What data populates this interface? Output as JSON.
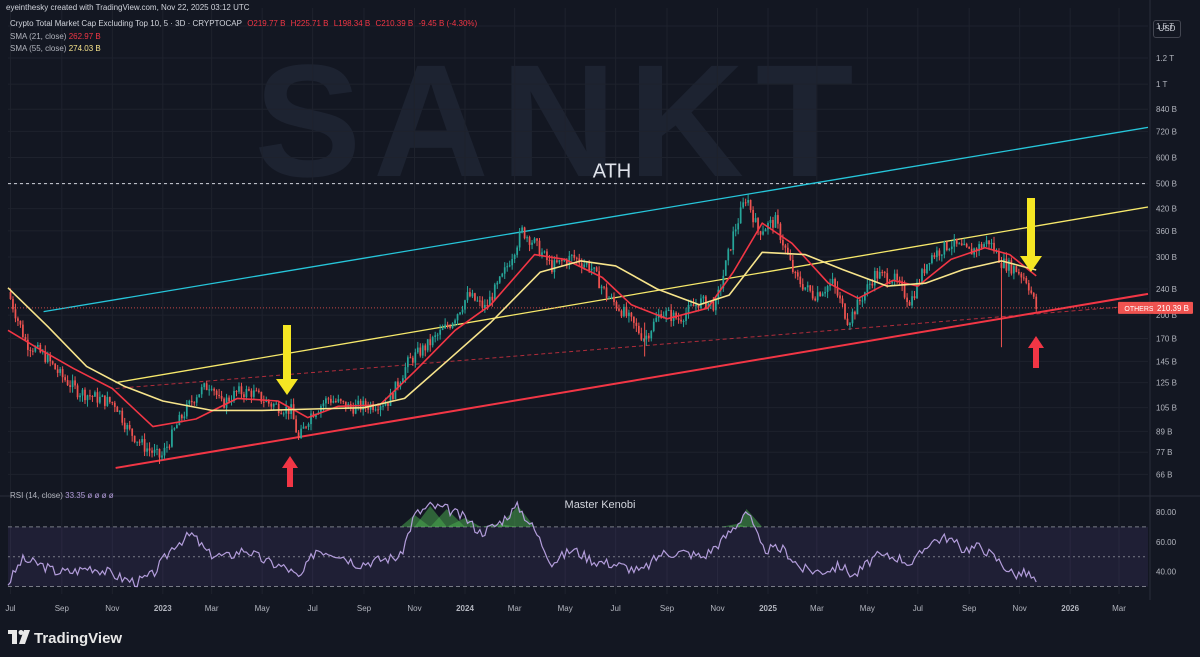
{
  "header": {
    "credit": "eyeinthesky created with TradingView.com, Nov 22, 2025 03:12 UTC"
  },
  "legend": {
    "symbol": "Crypto Total Market Cap Excluding Top 10, 5 · 3D · CRYPTOCAP",
    "open": "O219.77 B",
    "high": "H225.71 B",
    "low": "L198.34 B",
    "close": "C210.39 B",
    "change": "-9.45 B (-4.30%)",
    "sma21_label": "SMA (21, close)",
    "sma21_value": "262.97 B",
    "sma55_label": "SMA (55, close)",
    "sma55_value": "274.03 B",
    "rsi_label": "RSI (14, close)",
    "rsi_value": "33.35",
    "rsi_extra": "ø ø ø ø"
  },
  "currency_button": "USD",
  "watermark": "SANKT",
  "annotations": {
    "ath": "ATH",
    "rsi_title": "Master Kenobi"
  },
  "footer": {
    "brand": "TradingView"
  },
  "colors": {
    "background": "#131722",
    "candle_up": "#26a69a",
    "candle_down": "#ef5350",
    "sma21": "#f23645",
    "sma55": "#f7e48b",
    "channel_top": "#26c6da",
    "channel_mid": "#f7e96b",
    "channel_bottom": "#f23645",
    "rsi": "#b39ddb",
    "arrow_yellow": "#f5e623",
    "arrow_red": "#f23645"
  },
  "chart_data": {
    "type": "candlestick",
    "title": "Crypto Total Market Cap Excluding Top 10",
    "y_scale": "log",
    "y_unit": "USD",
    "price_ticks": [
      "1.5 T",
      "1.2 T",
      "1 T",
      "840 B",
      "720 B",
      "600 B",
      "500 B",
      "420 B",
      "360 B",
      "300 B",
      "240 B",
      "200 B",
      "170 B",
      "145 B",
      "125 B",
      "105 B",
      "89 B",
      "77 B",
      "66 B"
    ],
    "price_tick_values": [
      1500,
      1200,
      1000,
      840,
      720,
      600,
      500,
      420,
      360,
      300,
      240,
      200,
      170,
      145,
      125,
      105,
      89,
      77,
      66
    ],
    "x_ticks": [
      "Jul",
      "Sep",
      "Nov",
      "2023",
      "Mar",
      "May",
      "Jul",
      "Sep",
      "Nov",
      "2024",
      "Mar",
      "May",
      "Jul",
      "Sep",
      "Nov",
      "2025",
      "Mar",
      "May",
      "Jul",
      "Sep",
      "Nov",
      "2026",
      "Mar"
    ],
    "x_tick_dates": [
      "2022-07-01",
      "2022-09-01",
      "2022-11-01",
      "2023-01-01",
      "2023-03-01",
      "2023-05-01",
      "2023-07-01",
      "2023-09-01",
      "2023-11-01",
      "2024-01-01",
      "2024-03-01",
      "2024-05-01",
      "2024-07-01",
      "2024-09-01",
      "2024-11-01",
      "2025-01-01",
      "2025-03-01",
      "2025-05-01",
      "2025-07-01",
      "2025-09-01",
      "2025-11-01",
      "2026-01-01",
      "2026-03-01"
    ],
    "x_range": [
      "2022-06-28",
      "2026-04-05"
    ],
    "y_range": [
      60,
      1700
    ],
    "current_price_label": "OTHERS",
    "current_price_value": "210.39 B",
    "current_price": 210.39,
    "ath_level": 500,
    "price_path": [
      [
        "2022-06-28",
        235
      ],
      [
        "2022-07-20",
        165
      ],
      [
        "2022-08-12",
        150
      ],
      [
        "2022-08-30",
        132
      ],
      [
        "2022-09-20",
        118
      ],
      [
        "2022-10-15",
        112
      ],
      [
        "2022-11-05",
        108
      ],
      [
        "2022-11-20",
        90
      ],
      [
        "2022-12-10",
        80
      ],
      [
        "2022-12-30",
        74
      ],
      [
        "2023-01-20",
        95
      ],
      [
        "2023-02-10",
        115
      ],
      [
        "2023-03-01",
        125
      ],
      [
        "2023-03-12",
        107
      ],
      [
        "2023-04-01",
        117
      ],
      [
        "2023-04-18",
        117
      ],
      [
        "2023-05-10",
        108
      ],
      [
        "2023-06-05",
        103
      ],
      [
        "2023-06-14",
        84
      ],
      [
        "2023-06-28",
        100
      ],
      [
        "2023-07-20",
        112
      ],
      [
        "2023-08-15",
        105
      ],
      [
        "2023-09-10",
        107
      ],
      [
        "2023-10-01",
        110
      ],
      [
        "2023-10-25",
        145
      ],
      [
        "2023-11-20",
        165
      ],
      [
        "2023-12-15",
        190
      ],
      [
        "2024-01-05",
        230
      ],
      [
        "2024-01-25",
        210
      ],
      [
        "2024-02-15",
        260
      ],
      [
        "2024-03-10",
        360
      ],
      [
        "2024-03-25",
        330
      ],
      [
        "2024-04-15",
        280
      ],
      [
        "2024-05-10",
        300
      ],
      [
        "2024-06-01",
        280
      ],
      [
        "2024-06-20",
        230
      ],
      [
        "2024-07-10",
        205
      ],
      [
        "2024-08-05",
        170
      ],
      [
        "2024-08-25",
        205
      ],
      [
        "2024-09-15",
        195
      ],
      [
        "2024-10-10",
        220
      ],
      [
        "2024-10-30",
        215
      ],
      [
        "2024-11-20",
        350
      ],
      [
        "2024-12-06",
        460
      ],
      [
        "2024-12-20",
        360
      ],
      [
        "2025-01-10",
        385
      ],
      [
        "2025-02-03",
        260
      ],
      [
        "2025-02-25",
        230
      ],
      [
        "2025-03-20",
        250
      ],
      [
        "2025-04-08",
        192
      ],
      [
        "2025-05-10",
        265
      ],
      [
        "2025-06-01",
        260
      ],
      [
        "2025-06-22",
        220
      ],
      [
        "2025-07-15",
        300
      ],
      [
        "2025-08-10",
        330
      ],
      [
        "2025-09-01",
        310
      ],
      [
        "2025-09-25",
        335
      ],
      [
        "2025-10-10",
        290
      ],
      [
        "2025-10-28",
        275
      ],
      [
        "2025-11-10",
        255
      ],
      [
        "2025-11-21",
        210
      ]
    ],
    "series": [
      {
        "name": "SMA (21, close)",
        "path": [
          [
            "2022-06-28",
            180
          ],
          [
            "2022-08-01",
            160
          ],
          [
            "2022-09-15",
            138
          ],
          [
            "2022-11-01",
            120
          ],
          [
            "2022-12-20",
            92
          ],
          [
            "2023-02-10",
            97
          ],
          [
            "2023-04-01",
            112
          ],
          [
            "2023-05-20",
            110
          ],
          [
            "2023-06-25",
            98
          ],
          [
            "2023-08-01",
            106
          ],
          [
            "2023-09-20",
            107
          ],
          [
            "2023-11-01",
            135
          ],
          [
            "2023-12-20",
            180
          ],
          [
            "2024-02-01",
            215
          ],
          [
            "2024-03-25",
            305
          ],
          [
            "2024-05-01",
            295
          ],
          [
            "2024-06-15",
            260
          ],
          [
            "2024-07-20",
            215
          ],
          [
            "2024-09-01",
            195
          ],
          [
            "2024-10-20",
            210
          ],
          [
            "2024-11-20",
            270
          ],
          [
            "2024-12-25",
            380
          ],
          [
            "2025-01-30",
            330
          ],
          [
            "2025-03-15",
            250
          ],
          [
            "2025-04-20",
            225
          ],
          [
            "2025-06-01",
            255
          ],
          [
            "2025-07-01",
            245
          ],
          [
            "2025-08-10",
            295
          ],
          [
            "2025-09-20",
            320
          ],
          [
            "2025-10-20",
            305
          ],
          [
            "2025-11-21",
            263
          ]
        ]
      },
      {
        "name": "SMA (55, close)",
        "path": [
          [
            "2022-06-28",
            242
          ],
          [
            "2022-08-15",
            185
          ],
          [
            "2022-10-01",
            140
          ],
          [
            "2022-11-15",
            122
          ],
          [
            "2023-01-01",
            110
          ],
          [
            "2023-03-01",
            103
          ],
          [
            "2023-05-01",
            103
          ],
          [
            "2023-07-01",
            104
          ],
          [
            "2023-09-01",
            105
          ],
          [
            "2023-10-20",
            112
          ],
          [
            "2023-12-10",
            145
          ],
          [
            "2024-02-01",
            190
          ],
          [
            "2024-04-01",
            270
          ],
          [
            "2024-05-20",
            292
          ],
          [
            "2024-07-01",
            282
          ],
          [
            "2024-08-20",
            240
          ],
          [
            "2024-10-10",
            215
          ],
          [
            "2024-11-15",
            230
          ],
          [
            "2024-12-25",
            310
          ],
          [
            "2025-02-15",
            305
          ],
          [
            "2025-04-01",
            275
          ],
          [
            "2025-05-25",
            245
          ],
          [
            "2025-07-10",
            250
          ],
          [
            "2025-08-25",
            275
          ],
          [
            "2025-10-10",
            292
          ],
          [
            "2025-11-21",
            274
          ]
        ]
      }
    ],
    "trendlines": [
      {
        "name": "channel_top",
        "from": [
          "2022-08-10",
          205
        ],
        "to": [
          "2026-04-05",
          740
        ]
      },
      {
        "name": "channel_mid",
        "from": [
          "2022-11-05",
          125
        ],
        "to": [
          "2026-04-05",
          425
        ]
      },
      {
        "name": "channel_bottom",
        "from": [
          "2022-11-05",
          69
        ],
        "to": [
          "2026-04-05",
          232
        ]
      },
      {
        "name": "channel_bottom_extension",
        "from": [
          "2022-11-05",
          120
        ],
        "to": [
          "2026-04-05",
          215
        ]
      }
    ],
    "rsi": {
      "name": "RSI (14, close)",
      "ticks": [
        "80.00",
        "60.00",
        "40.00"
      ],
      "tick_values": [
        80,
        60,
        40
      ],
      "bands": [
        70,
        50,
        30
      ],
      "range": [
        25,
        88
      ],
      "path": [
        [
          "2022-06-28",
          32
        ],
        [
          "2022-07-15",
          48
        ],
        [
          "2022-08-05",
          45
        ],
        [
          "2022-08-25",
          40
        ],
        [
          "2022-09-15",
          40
        ],
        [
          "2022-10-05",
          43
        ],
        [
          "2022-10-25",
          40
        ],
        [
          "2022-11-15",
          35
        ],
        [
          "2022-12-01",
          33
        ],
        [
          "2022-12-20",
          38
        ],
        [
          "2023-01-15",
          58
        ],
        [
          "2023-02-05",
          65
        ],
        [
          "2023-02-25",
          52
        ],
        [
          "2023-03-20",
          50
        ],
        [
          "2023-04-10",
          55
        ],
        [
          "2023-05-05",
          47
        ],
        [
          "2023-06-01",
          42
        ],
        [
          "2023-06-15",
          35
        ],
        [
          "2023-07-05",
          55
        ],
        [
          "2023-08-01",
          52
        ],
        [
          "2023-08-25",
          45
        ],
        [
          "2023-09-20",
          48
        ],
        [
          "2023-10-15",
          50
        ],
        [
          "2023-11-01",
          78
        ],
        [
          "2023-11-20",
          84
        ],
        [
          "2023-12-10",
          82
        ],
        [
          "2024-01-01",
          76
        ],
        [
          "2024-01-20",
          66
        ],
        [
          "2024-02-10",
          72
        ],
        [
          "2024-03-05",
          84
        ],
        [
          "2024-03-25",
          68
        ],
        [
          "2024-04-15",
          46
        ],
        [
          "2024-05-10",
          55
        ],
        [
          "2024-06-05",
          47
        ],
        [
          "2024-07-01",
          45
        ],
        [
          "2024-08-01",
          40
        ],
        [
          "2024-08-25",
          52
        ],
        [
          "2024-09-20",
          53
        ],
        [
          "2024-10-15",
          50
        ],
        [
          "2024-11-05",
          60
        ],
        [
          "2024-11-25",
          72
        ],
        [
          "2024-12-06",
          82
        ],
        [
          "2024-12-25",
          55
        ],
        [
          "2025-01-20",
          55
        ],
        [
          "2025-02-10",
          42
        ],
        [
          "2025-03-05",
          40
        ],
        [
          "2025-03-30",
          44
        ],
        [
          "2025-04-15",
          37
        ],
        [
          "2025-05-10",
          50
        ],
        [
          "2025-06-05",
          50
        ],
        [
          "2025-06-25",
          45
        ],
        [
          "2025-07-15",
          60
        ],
        [
          "2025-08-05",
          63
        ],
        [
          "2025-08-25",
          55
        ],
        [
          "2025-09-15",
          57
        ],
        [
          "2025-10-05",
          48
        ],
        [
          "2025-10-25",
          38
        ],
        [
          "2025-11-10",
          39
        ],
        [
          "2025-11-21",
          33
        ]
      ]
    }
  }
}
